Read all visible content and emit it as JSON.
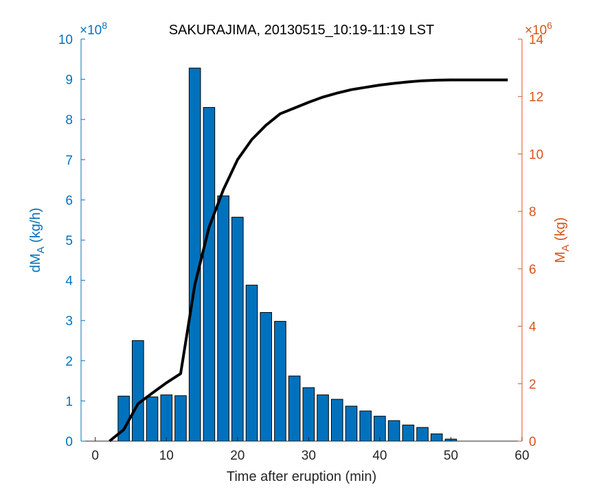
{
  "chart_data": {
    "type": "bar",
    "title": "SAKURAJIMA, 20130515_10:19-11:19 LST",
    "xlabel": "Time after eruption (min)",
    "ylabel_left": {
      "main": "dM",
      "sub": "A",
      "rest": " (kg/h)"
    },
    "ylabel_right": {
      "main": "M",
      "sub": "A",
      "rest": " (kg)"
    },
    "left_exponent": {
      "base": "×10",
      "power": "8"
    },
    "right_exponent": {
      "base": "×10",
      "power": "6"
    },
    "xlim": [
      -2,
      60
    ],
    "x_ticks": [
      0,
      10,
      20,
      30,
      40,
      50,
      60
    ],
    "ylim_left": [
      0,
      10
    ],
    "y_ticks_left": [
      0,
      1,
      2,
      3,
      4,
      5,
      6,
      7,
      8,
      9,
      10
    ],
    "ylim_right": [
      0,
      14
    ],
    "y_ticks_right": [
      0,
      2,
      4,
      6,
      8,
      10,
      12,
      14
    ],
    "bar_width": 1.6,
    "colors": {
      "bars": "#0072BD",
      "bar_edge": "#000000",
      "left_axis": "#0072BD",
      "right_axis": "#D95319",
      "line": "#000000"
    },
    "series": [
      {
        "name": "dM_A",
        "axis": "left",
        "type": "bar",
        "x": [
          0,
          2,
          4,
          6,
          8,
          10,
          12,
          14,
          16,
          18,
          20,
          22,
          24,
          26,
          28,
          30,
          32,
          34,
          36,
          38,
          40,
          42,
          44,
          46,
          48,
          50,
          52,
          54,
          56,
          58
        ],
        "values": [
          0.0,
          0.0,
          1.12,
          2.5,
          1.1,
          1.15,
          1.13,
          9.28,
          8.3,
          6.1,
          5.57,
          3.88,
          3.2,
          2.98,
          1.62,
          1.33,
          1.15,
          1.04,
          0.87,
          0.75,
          0.62,
          0.51,
          0.4,
          0.34,
          0.18,
          0.05,
          0.0,
          0.0,
          0.0,
          0.0
        ]
      },
      {
        "name": "M_A",
        "axis": "right",
        "type": "line",
        "x": [
          2,
          4,
          6,
          8,
          10,
          12,
          14,
          16,
          18,
          20,
          22,
          24,
          26,
          28,
          30,
          32,
          34,
          36,
          38,
          40,
          42,
          44,
          46,
          48,
          50,
          52,
          54,
          56,
          58
        ],
        "values": [
          0.0,
          0.4,
          1.3,
          1.67,
          2.03,
          2.35,
          5.45,
          7.45,
          8.75,
          9.8,
          10.5,
          11.0,
          11.4,
          11.6,
          11.8,
          11.98,
          12.12,
          12.24,
          12.32,
          12.4,
          12.46,
          12.51,
          12.55,
          12.57,
          12.58,
          12.58,
          12.58,
          12.58,
          12.58
        ]
      }
    ]
  }
}
